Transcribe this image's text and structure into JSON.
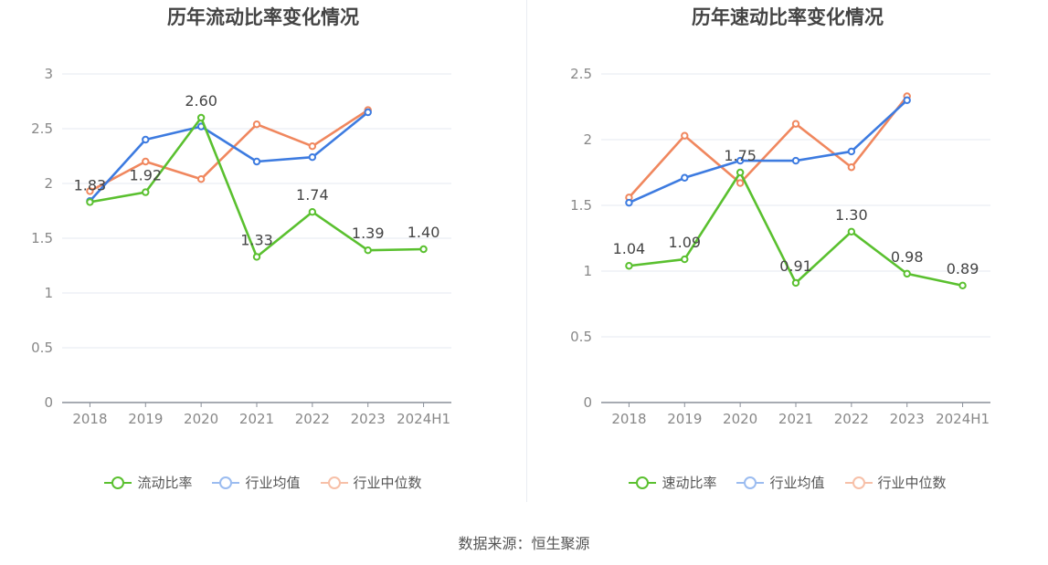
{
  "chart_data": [
    {
      "type": "line",
      "title": "历年流动比率变化情况",
      "categories": [
        "2018",
        "2019",
        "2020",
        "2021",
        "2022",
        "2023",
        "2024H1"
      ],
      "ylim": [
        0,
        3
      ],
      "yticks": [
        "0",
        "0.5",
        "1",
        "1.5",
        "2",
        "2.5",
        "3"
      ],
      "grid": true,
      "legend_position": "bottom",
      "series": [
        {
          "name": "流动比率",
          "color": "#5ac02f",
          "values": [
            1.83,
            1.92,
            2.6,
            1.33,
            1.74,
            1.39,
            1.4
          ],
          "labels": [
            "1.83",
            "1.92",
            "2.60",
            "1.33",
            "1.74",
            "1.39",
            "1.40"
          ]
        },
        {
          "name": "行业均值",
          "color": "#3d7be0",
          "values": [
            1.84,
            2.4,
            2.52,
            2.2,
            2.24,
            2.65,
            null
          ]
        },
        {
          "name": "行业中位数",
          "color": "#f0875e",
          "values": [
            1.93,
            2.2,
            2.04,
            2.54,
            2.34,
            2.67,
            null
          ]
        }
      ]
    },
    {
      "type": "line",
      "title": "历年速动比率变化情况",
      "categories": [
        "2018",
        "2019",
        "2020",
        "2021",
        "2022",
        "2023",
        "2024H1"
      ],
      "ylim": [
        0,
        2.5
      ],
      "yticks": [
        "0",
        "0.5",
        "1",
        "1.5",
        "2",
        "2.5"
      ],
      "grid": true,
      "legend_position": "bottom",
      "series": [
        {
          "name": "速动比率",
          "color": "#5ac02f",
          "values": [
            1.04,
            1.09,
            1.75,
            0.91,
            1.3,
            0.98,
            0.89
          ],
          "labels": [
            "1.04",
            "1.09",
            "1.75",
            "0.91",
            "1.30",
            "0.98",
            "0.89"
          ]
        },
        {
          "name": "行业均值",
          "color": "#3d7be0",
          "values": [
            1.52,
            1.71,
            1.84,
            1.84,
            1.91,
            2.3,
            null
          ]
        },
        {
          "name": "行业中位数",
          "color": "#f0875e",
          "values": [
            1.56,
            2.03,
            1.67,
            2.12,
            1.79,
            2.33,
            null
          ]
        }
      ]
    }
  ],
  "legend_colors": {
    "faded_blue": "#9bbcf0",
    "faded_orange": "#f7c0a8"
  },
  "source_text": "数据来源：恒生聚源"
}
